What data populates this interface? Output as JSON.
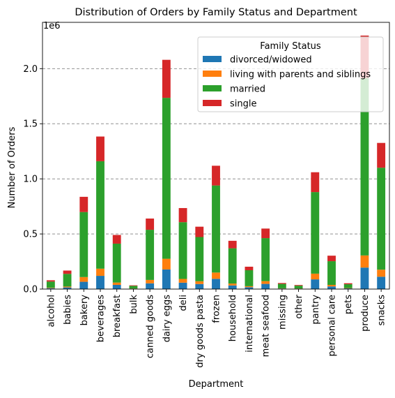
{
  "chart_data": {
    "type": "bar",
    "stacked": true,
    "title": "Distribution of Orders by Family Status and Department",
    "xlabel": "Department",
    "ylabel": "Number of Orders",
    "y_scale_label": "1e6",
    "ylim": [
      0,
      2.42
    ],
    "y_ticks": [
      0,
      0.5,
      1.0,
      1.5,
      2.0
    ],
    "y_tick_labels": [
      "0.0",
      "0.5",
      "1.0",
      "1.5",
      "2.0"
    ],
    "grid": "horizontal dashed",
    "legend_title": "Family Status",
    "legend_position": "top-right",
    "categories": [
      "alcohol",
      "babies",
      "bakery",
      "beverages",
      "breakfast",
      "bulk",
      "canned goods",
      "dairy eggs",
      "deli",
      "dry goods pasta",
      "frozen",
      "household",
      "international",
      "meat seafood",
      "missing",
      "other",
      "pantry",
      "personal care",
      "pets",
      "produce",
      "snacks"
    ],
    "series": [
      {
        "name": "divorced/widowed",
        "color": "#1f77b4",
        "values": [
          0.008,
          0.015,
          0.066,
          0.12,
          0.038,
          0.003,
          0.052,
          0.178,
          0.058,
          0.046,
          0.093,
          0.033,
          0.017,
          0.047,
          0.005,
          0.003,
          0.088,
          0.024,
          0.006,
          0.195,
          0.112
        ]
      },
      {
        "name": "living with parents and siblings",
        "color": "#ff7f0e",
        "values": [
          0.004,
          0.008,
          0.043,
          0.065,
          0.021,
          0.002,
          0.031,
          0.097,
          0.034,
          0.025,
          0.057,
          0.017,
          0.009,
          0.025,
          0.002,
          0.002,
          0.052,
          0.014,
          0.003,
          0.11,
          0.064
        ]
      },
      {
        "name": "married",
        "color": "#2ca02c",
        "values": [
          0.056,
          0.115,
          0.59,
          0.975,
          0.353,
          0.024,
          0.455,
          1.46,
          0.515,
          0.401,
          0.79,
          0.32,
          0.145,
          0.39,
          0.04,
          0.026,
          0.74,
          0.215,
          0.035,
          1.61,
          0.925
        ]
      },
      {
        "name": "single",
        "color": "#d62728",
        "values": [
          0.012,
          0.03,
          0.138,
          0.224,
          0.079,
          0.005,
          0.102,
          0.345,
          0.128,
          0.094,
          0.179,
          0.068,
          0.032,
          0.087,
          0.008,
          0.006,
          0.18,
          0.05,
          0.009,
          0.385,
          0.225
        ]
      }
    ]
  }
}
